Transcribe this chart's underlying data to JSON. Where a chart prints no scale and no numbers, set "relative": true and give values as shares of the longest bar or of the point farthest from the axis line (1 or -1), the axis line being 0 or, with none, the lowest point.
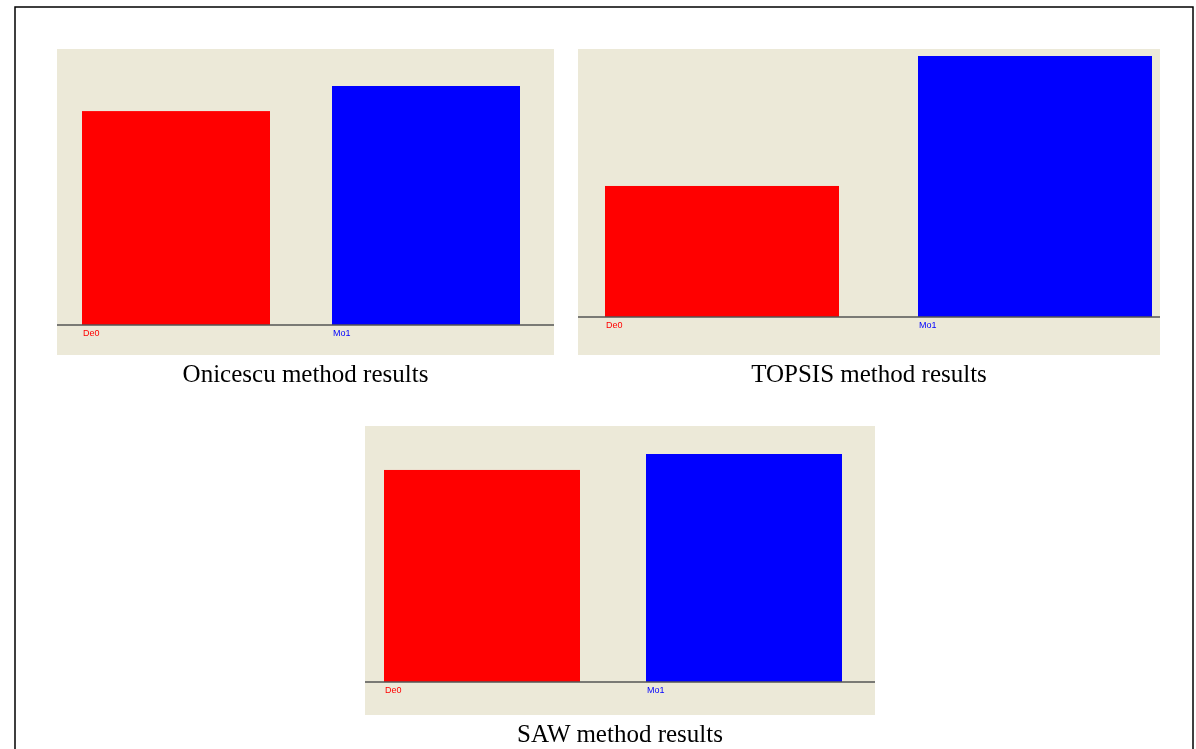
{
  "chart_data": [
    {
      "type": "bar",
      "title": "Onicescu method results",
      "categories": [
        "De0",
        "Mo1"
      ],
      "values": [
        0.895,
        1
      ],
      "colors": [
        "#ff0000",
        "#0000ff"
      ],
      "relative": true
    },
    {
      "type": "bar",
      "title": "TOPSIS method results",
      "categories": [
        "De0",
        "Mo1"
      ],
      "values": [
        0.502,
        1
      ],
      "colors": [
        "#ff0000",
        "#0000ff"
      ],
      "relative": true
    },
    {
      "type": "bar",
      "title": "SAW method results",
      "categories": [
        "De0",
        "Mo1"
      ],
      "values": [
        0.93,
        1
      ],
      "colors": [
        "#ff0000",
        "#0000ff"
      ],
      "relative": true
    }
  ]
}
